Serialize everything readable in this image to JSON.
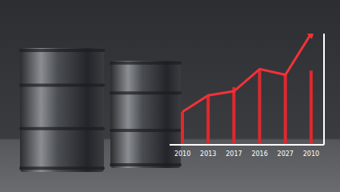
{
  "chart_data": {
    "type": "bar",
    "categories": [
      "2010",
      "2013",
      "2017",
      "2016",
      "2027",
      "2010"
    ],
    "series": [
      {
        "type": "bar",
        "color": "#e0282e",
        "values": [
          40,
          60,
          70,
          90,
          85,
          90
        ]
      },
      {
        "type": "line",
        "color": "#ee3338",
        "marker": "arrow",
        "values": [
          40,
          60,
          65,
          92,
          85,
          135
        ]
      }
    ],
    "tick_labels": "x"
  }
}
